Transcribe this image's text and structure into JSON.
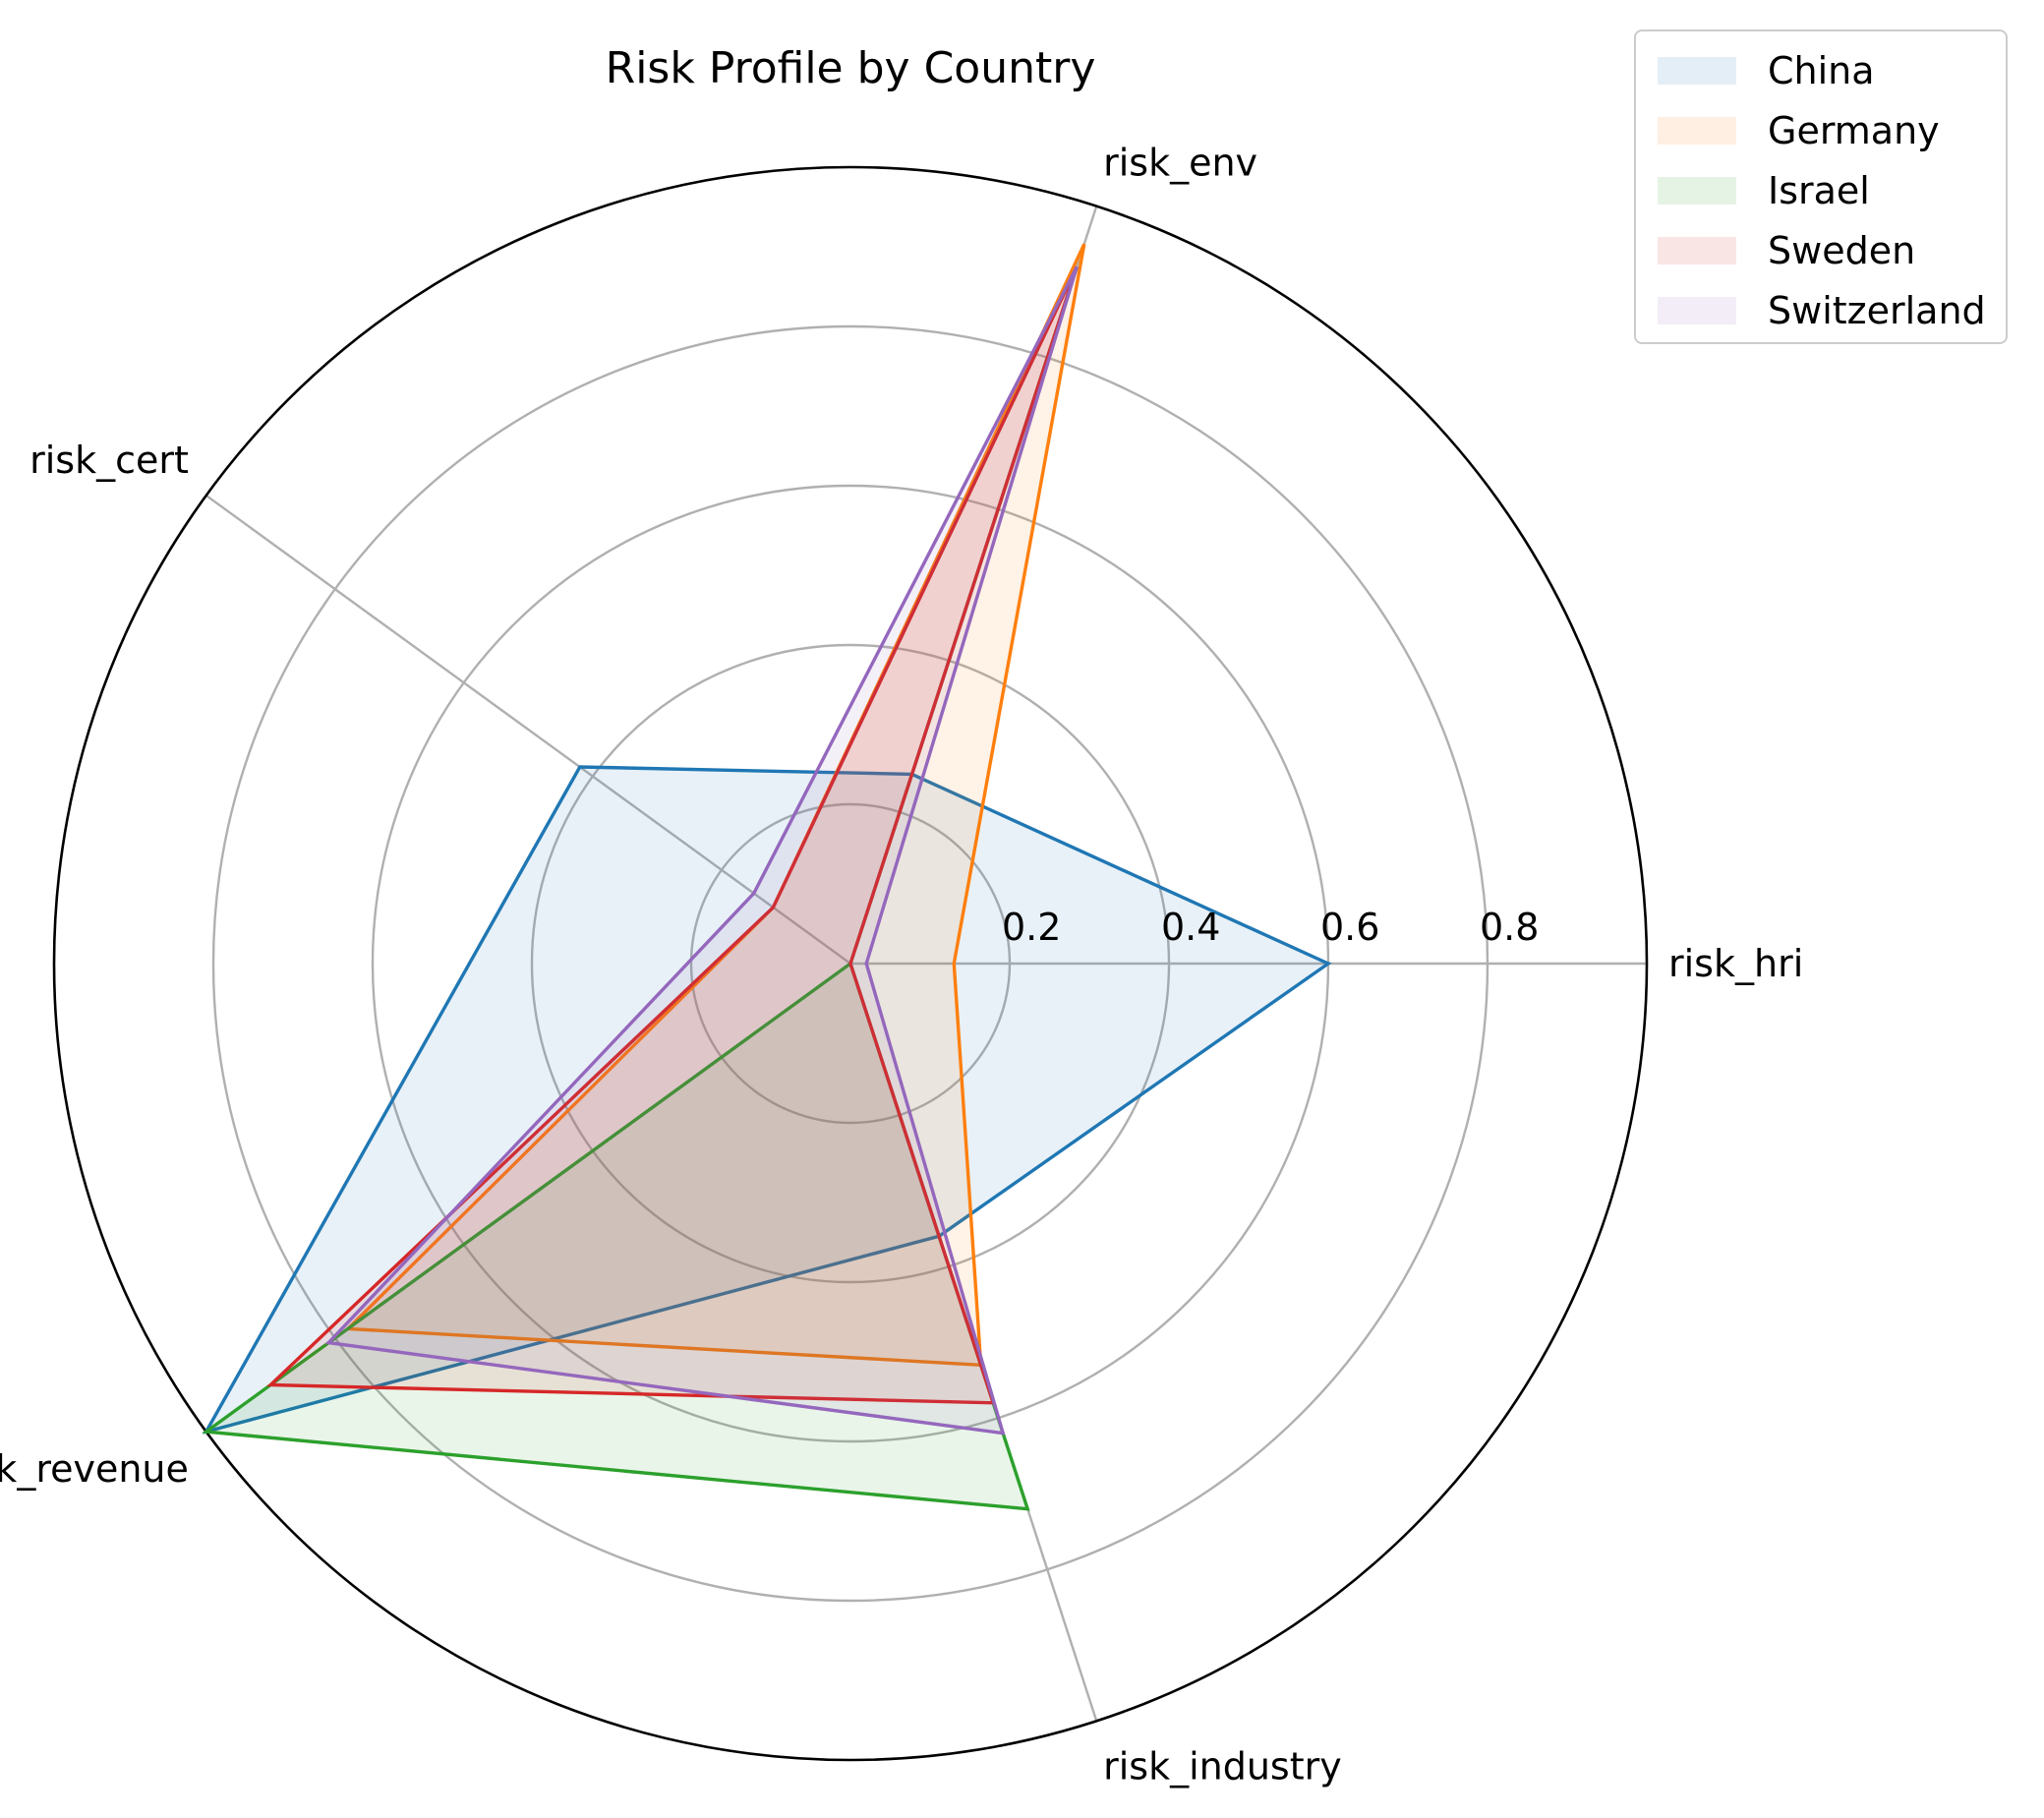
{
  "chart_data": {
    "type": "radar",
    "title": "Risk Profile by Country",
    "axes": [
      "risk_hri",
      "risk_env",
      "risk_cert",
      "risk_revenue",
      "risk_industry"
    ],
    "radial_ticks": [
      "0.2",
      "0.4",
      "0.6",
      "0.8"
    ],
    "radial_tick_values": [
      0.2,
      0.4,
      0.6,
      0.8
    ],
    "rlim": [
      0,
      1.0
    ],
    "grid": true,
    "legend_position": "top-right",
    "series": [
      {
        "name": "China",
        "color": "#1f77b4",
        "values": [
          0.6,
          0.25,
          0.42,
          1.0,
          0.36
        ]
      },
      {
        "name": "Germany",
        "color": "#ff7f0e",
        "values": [
          0.13,
          0.95,
          0.12,
          0.78,
          0.53
        ]
      },
      {
        "name": "Israel",
        "color": "#2ca02c",
        "values": [
          0.0,
          0.92,
          0.0,
          1.0,
          0.72
        ]
      },
      {
        "name": "Sweden",
        "color": "#d62728",
        "values": [
          0.0,
          0.92,
          0.12,
          0.9,
          0.58
        ]
      },
      {
        "name": "Switzerland",
        "color": "#9467bd",
        "values": [
          0.02,
          0.92,
          0.15,
          0.81,
          0.62
        ]
      }
    ]
  }
}
